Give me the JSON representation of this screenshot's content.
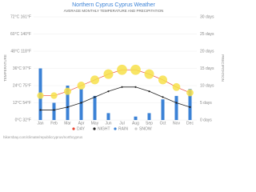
{
  "chart_data": {
    "type": "combo",
    "title": "Northern Cyprus Cyprus Weather",
    "subtitle": "AVERAGE MONTHLY TEMPERATURE AND PRECIPITATION",
    "y_label": "TEMPERATURE",
    "y2_label": "PRECIPITATION",
    "categories": [
      "Jan",
      "Feb",
      "Mar",
      "Apr",
      "May",
      "Jun",
      "Jul",
      "Aug",
      "Sep",
      "Oct",
      "Nov",
      "Dec"
    ],
    "ylim": [
      0,
      72
    ],
    "yticks": [
      {
        "value": 0,
        "label": "0°C 32°F"
      },
      {
        "value": 12,
        "label": "12°C 54°F"
      },
      {
        "value": 24,
        "label": "24°C 75°F"
      },
      {
        "value": 36,
        "label": "36°C 97°F"
      },
      {
        "value": 48,
        "label": "48°C 118°F"
      },
      {
        "value": 60,
        "label": "60°C 140°F"
      },
      {
        "value": 72,
        "label": "72°C 161°F"
      }
    ],
    "y2lim": [
      0,
      30
    ],
    "y2ticks": [
      {
        "value": 0,
        "label": "0 days"
      },
      {
        "value": 5,
        "label": "5 days"
      },
      {
        "value": 10,
        "label": "10 days"
      },
      {
        "value": 15,
        "label": "15 days"
      },
      {
        "value": 20,
        "label": "20 days"
      },
      {
        "value": 25,
        "label": "25 days"
      },
      {
        "value": 30,
        "label": "30 days"
      }
    ],
    "grid": true,
    "series": [
      {
        "name": "DAY",
        "color": "#e8432f",
        "values": [
          17,
          17,
          20,
          24,
          28,
          32,
          35,
          35,
          32,
          28,
          23,
          19
        ]
      },
      {
        "name": "NIGHT",
        "color": "#222222",
        "values": [
          7,
          7,
          9,
          12,
          16,
          20,
          23,
          23,
          20,
          16,
          12,
          9
        ]
      },
      {
        "name": "RAIN",
        "color": "#3b82d6",
        "axis": "y2",
        "values": [
          15,
          5,
          10,
          9,
          7,
          2,
          0,
          1,
          2,
          6,
          7,
          9
        ]
      },
      {
        "name": "SNOW",
        "color": "#cccccc",
        "axis": "y2",
        "values": [
          0,
          0,
          0,
          0,
          0,
          0,
          0,
          0,
          0,
          0,
          0,
          0
        ]
      }
    ],
    "footer": "hikersbay.com/climate/republiccyprus/northcyprus"
  }
}
